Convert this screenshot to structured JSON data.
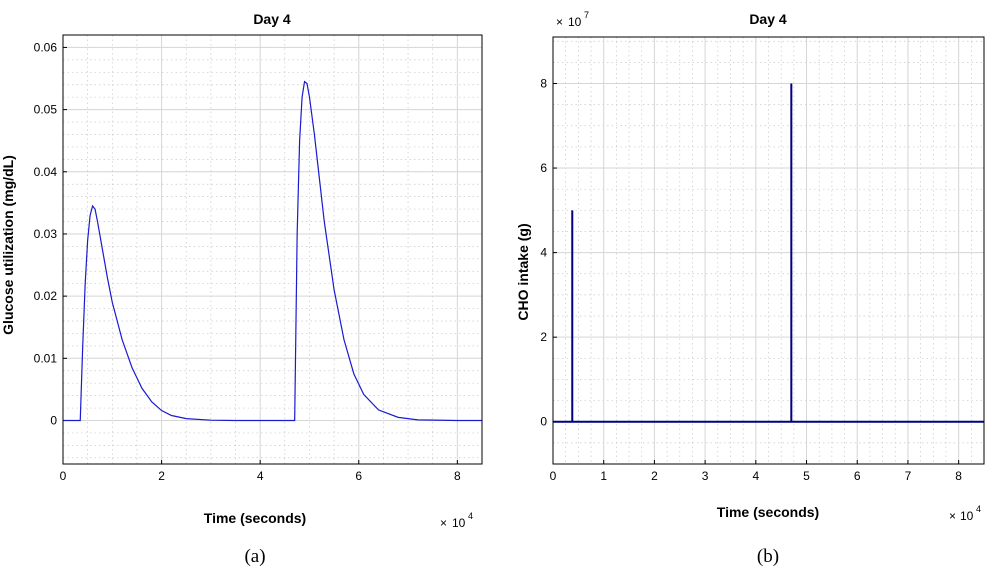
{
  "chart_data": [
    {
      "type": "line",
      "title": "Day 4",
      "xlabel": "Time (seconds)",
      "ylabel": "Glucose utilization (mg/dL)",
      "x_multiplier": "10",
      "x_multiplier_exp": "4",
      "xlim": [
        0,
        8.5
      ],
      "ylim": [
        -0.007,
        0.062
      ],
      "xticks": [
        "0",
        "2",
        "4",
        "6",
        "8"
      ],
      "yticks": [
        "0",
        "0.01",
        "0.02",
        "0.03",
        "0.04",
        "0.05",
        "0.06"
      ],
      "grid": true,
      "color": "#1a1ad0",
      "caption": "(a)",
      "series": [
        {
          "x": [
            0,
            0.35,
            0.4,
            0.45,
            0.5,
            0.55,
            0.6,
            0.65,
            0.7,
            0.8,
            0.9,
            1.0,
            1.2,
            1.4,
            1.6,
            1.8,
            2.0,
            2.2,
            2.5,
            3.0,
            3.5,
            4.0,
            4.7,
            4.72,
            4.75,
            4.8,
            4.85,
            4.9,
            4.95,
            5.0,
            5.1,
            5.2,
            5.3,
            5.5,
            5.7,
            5.9,
            6.1,
            6.4,
            6.8,
            7.2,
            8.0,
            8.5
          ],
          "y": [
            0,
            0,
            0.012,
            0.022,
            0.029,
            0.033,
            0.0345,
            0.034,
            0.032,
            0.0275,
            0.023,
            0.019,
            0.013,
            0.0085,
            0.0052,
            0.003,
            0.0016,
            0.0008,
            0.0003,
            5e-05,
            0,
            0,
            0,
            0.012,
            0.03,
            0.045,
            0.052,
            0.0545,
            0.0542,
            0.052,
            0.046,
            0.039,
            0.032,
            0.021,
            0.013,
            0.0075,
            0.0042,
            0.0017,
            0.0005,
            0.0001,
            0,
            0
          ]
        }
      ]
    },
    {
      "type": "line",
      "title": "Day 4",
      "xlabel": "Time (seconds)",
      "ylabel": "CHO intake (g)",
      "x_multiplier": "10",
      "x_multiplier_exp": "4",
      "y_multiplier": "10",
      "y_multiplier_exp": "7",
      "xlim": [
        0,
        8.5
      ],
      "ylim": [
        -1.0,
        9.1
      ],
      "xticks": [
        "0",
        "1",
        "2",
        "3",
        "4",
        "5",
        "6",
        "7",
        "8"
      ],
      "yticks": [
        "0",
        "2",
        "4",
        "6",
        "8"
      ],
      "grid": true,
      "color": "#000080",
      "caption": "(b)",
      "series": [
        {
          "x": [
            0,
            0.38,
            0.38,
            0.38,
            4.7,
            4.7,
            4.7,
            8.5
          ],
          "y": [
            0,
            0,
            5,
            0,
            0,
            8,
            0,
            0
          ]
        }
      ]
    }
  ]
}
